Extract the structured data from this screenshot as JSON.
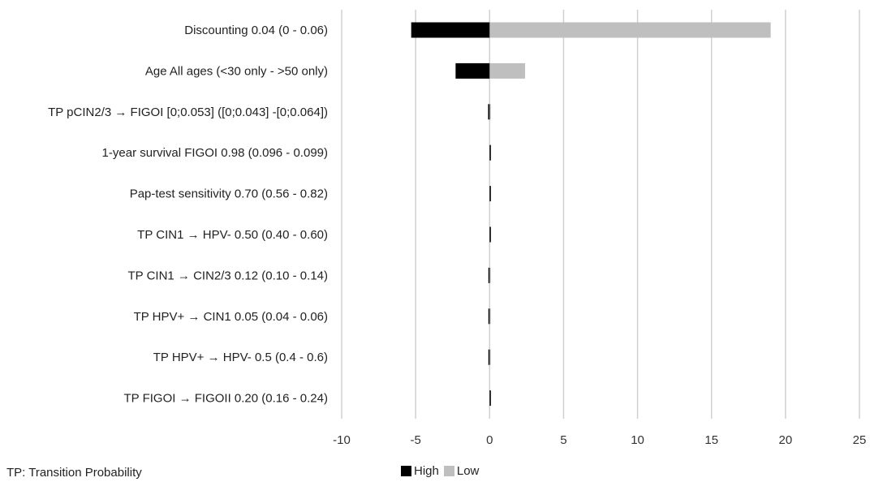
{
  "chart_data": {
    "type": "bar",
    "orientation": "horizontal",
    "title": "",
    "xlabel": "",
    "ylabel": "",
    "xlim": [
      -10,
      25
    ],
    "xticks": [
      "-10",
      "-5",
      "0",
      "5",
      "10",
      "15",
      "20",
      "25"
    ],
    "grid": true,
    "legend_position": "bottom",
    "categories": [
      "Discounting 0.04 (0 - 0.06)",
      "Age All ages (<30 only - >50 only)",
      "TP pCIN2/3 → FIGOI [0;0.053] ([0;0.043] -[0;0.064])",
      "1-year survival FIGOI 0.98 (0.096 - 0.099)",
      "Pap-test sensitivity 0.70 (0.56 - 0.82)",
      "TP CIN1 → HPV- 0.50 (0.40 - 0.60)",
      "TP CIN1 → CIN2/3 0.12 (0.10 - 0.14)",
      "TP HPV+ → CIN1 0.05 (0.04 - 0.06)",
      "TP HPV+ → HPV- 0.5 (0.4 - 0.6)",
      "TP FIGOI → FIGOII 0.20 (0.16 - 0.24)"
    ],
    "series": [
      {
        "name": "High",
        "color": "#000000",
        "values": [
          -5.3,
          -2.3,
          -0.1,
          0.05,
          0.05,
          0.05,
          -0.05,
          -0.05,
          -0.05,
          0.05
        ]
      },
      {
        "name": "Low",
        "color": "#bfbfbf",
        "values": [
          19.0,
          2.4,
          0.05,
          0.1,
          0.1,
          0.1,
          0.05,
          0.05,
          0.05,
          0.1
        ]
      }
    ]
  },
  "footnote": "TP: Transition Probability",
  "legend": {
    "high_label": "High",
    "low_label": "Low"
  }
}
